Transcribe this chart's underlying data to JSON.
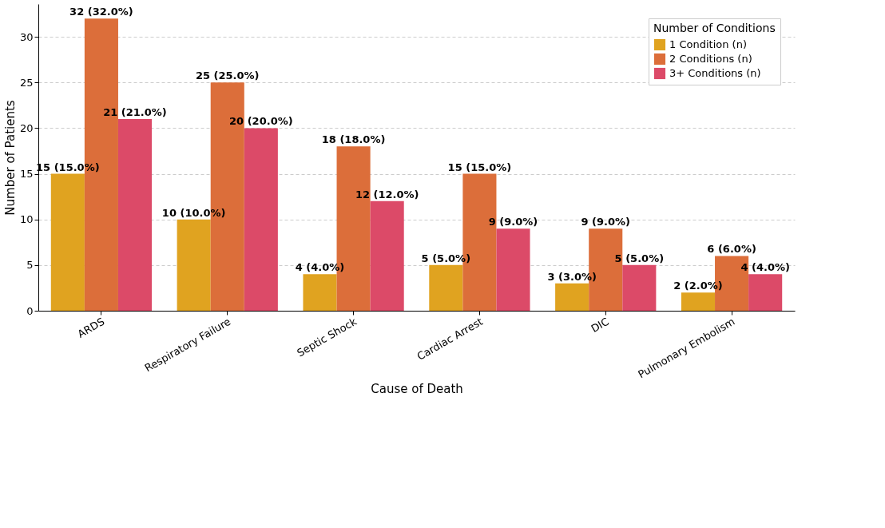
{
  "chart_data": {
    "type": "bar",
    "xlabel": "Cause of Death",
    "ylabel": "Number of Patients",
    "legend_title": "Number of Conditions",
    "legend": "top right",
    "grid": "y",
    "categories": [
      "ARDS",
      "Respiratory Failure",
      "Septic Shock",
      "Cardiac Arrest",
      "DIC",
      "Pulmonary Embolism"
    ],
    "ylim": [
      0,
      33.6
    ],
    "yticks": [
      0,
      5,
      10,
      15,
      20,
      25,
      30
    ],
    "series": [
      {
        "name": "1 Condition (n)",
        "color": "#e0a320",
        "values": [
          15,
          10,
          4,
          5,
          3,
          2
        ],
        "value_labels": [
          "15 (15.0%)",
          "10 (10.0%)",
          "4 (4.0%)",
          "5 (5.0%)",
          "3 (3.0%)",
          "2 (2.0%)"
        ]
      },
      {
        "name": "2 Conditions (n)",
        "color": "#dc6e3a",
        "values": [
          32,
          25,
          18,
          15,
          9,
          6
        ],
        "value_labels": [
          "32 (32.0%)",
          "25 (25.0%)",
          "18 (18.0%)",
          "15 (15.0%)",
          "9 (9.0%)",
          "6 (6.0%)"
        ]
      },
      {
        "name": "3+ Conditions (n)",
        "color": "#dc4a68",
        "values": [
          21,
          20,
          12,
          9,
          5,
          4
        ],
        "value_labels": [
          "21 (21.0%)",
          "20 (20.0%)",
          "12 (12.0%)",
          "9 (9.0%)",
          "5 (5.0%)",
          "4 (4.0%)"
        ]
      }
    ]
  }
}
